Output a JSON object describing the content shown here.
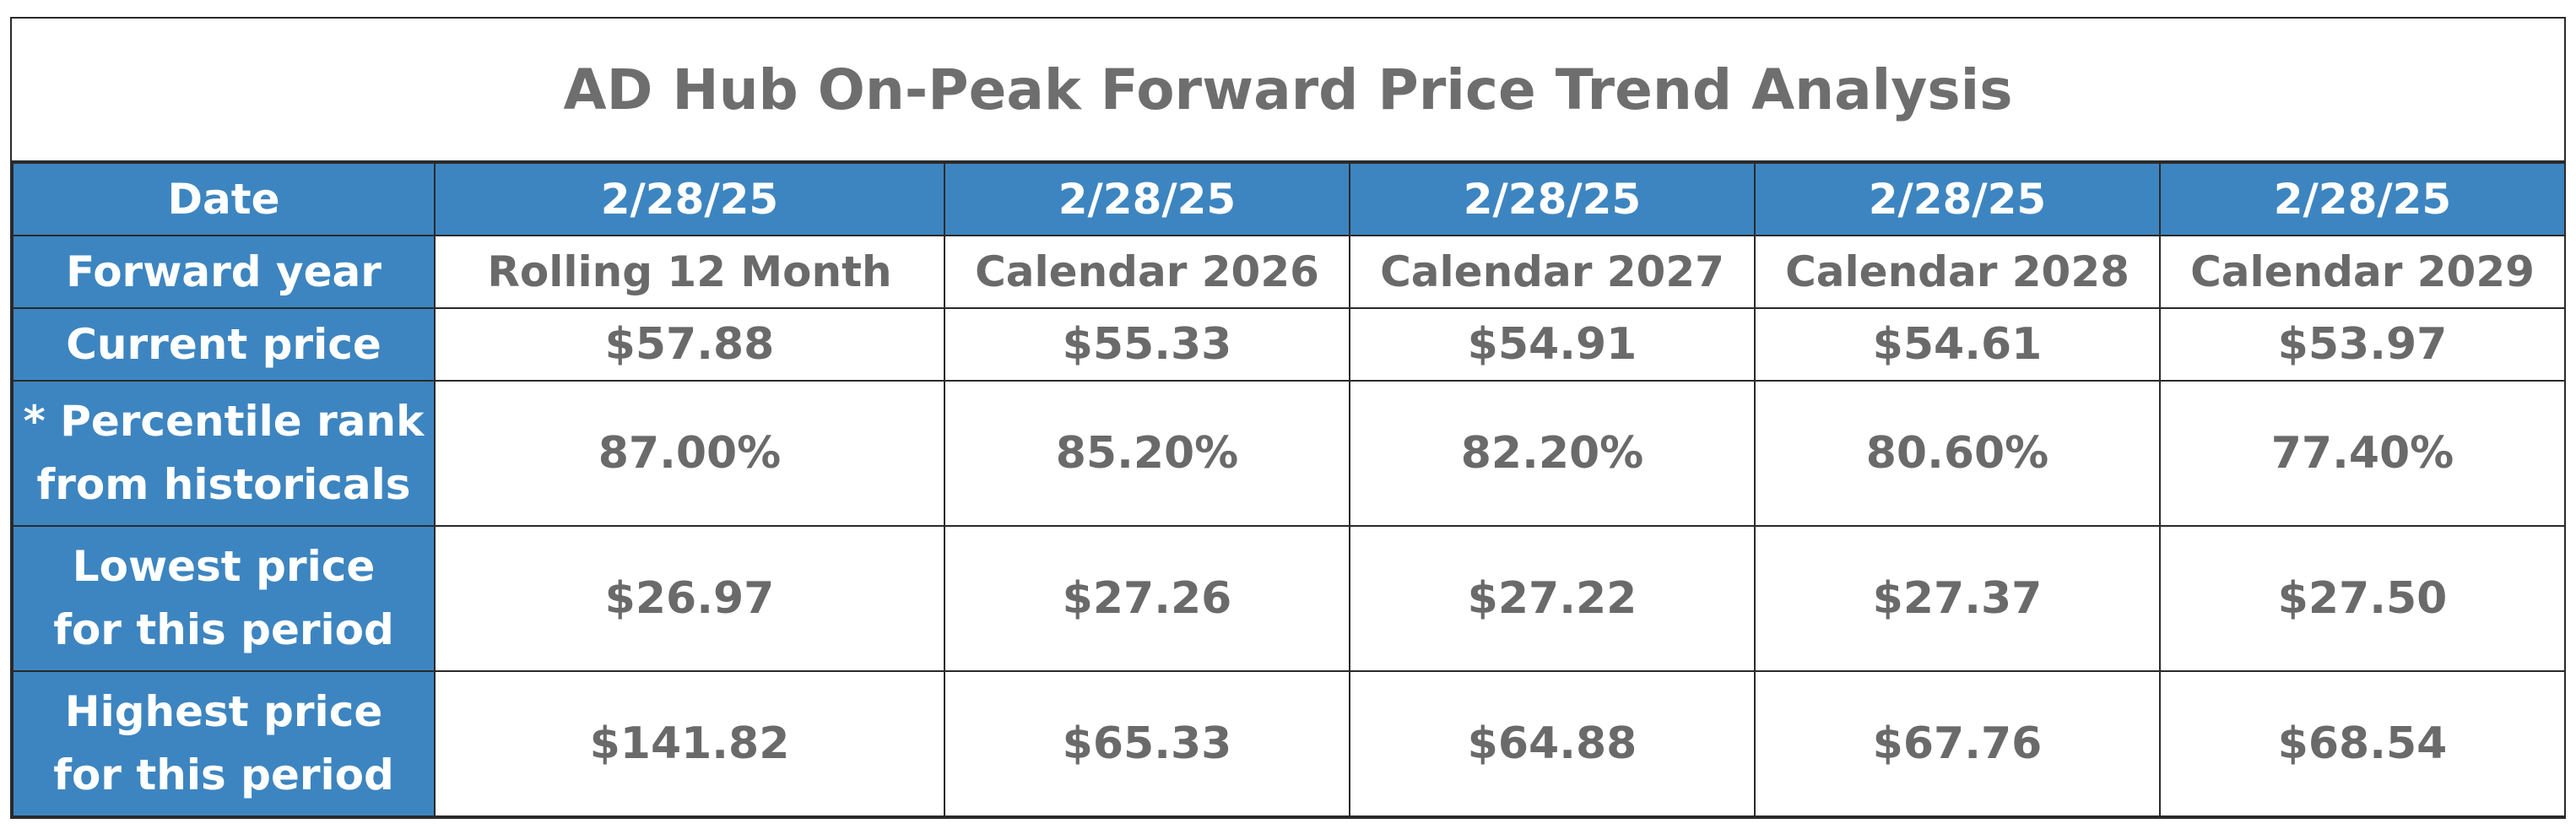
{
  "chart_data": {
    "type": "table",
    "title": "AD Hub On-Peak Forward Price Trend Analysis",
    "columns": [
      "Date",
      "2/28/25",
      "2/28/25",
      "2/28/25",
      "2/28/25",
      "2/28/25"
    ],
    "row_labels": [
      "Forward year",
      "Current price",
      [
        "* Percentile rank",
        "from historicals"
      ],
      [
        "Lowest price",
        "for this period"
      ],
      [
        "Highest price",
        "for this period"
      ]
    ],
    "rows": [
      [
        "Rolling 12 Month",
        "Calendar 2026",
        "Calendar 2027",
        "Calendar 2028",
        "Calendar 2029"
      ],
      [
        "$57.88",
        "$55.33",
        "$54.91",
        "$54.61",
        "$53.97"
      ],
      [
        "87.00%",
        "85.20%",
        "82.20%",
        "80.60%",
        "77.40%"
      ],
      [
        "$26.97",
        "$27.26",
        "$27.22",
        "$27.37",
        "$27.50"
      ],
      [
        "$141.82",
        "$65.33",
        "$64.88",
        "$67.76",
        "$68.54"
      ]
    ],
    "numeric": {
      "current_price": [
        57.88,
        55.33,
        54.91,
        54.61,
        53.97
      ],
      "percentile_rank": [
        87.0,
        85.2,
        82.2,
        80.6,
        77.4
      ],
      "lowest_price": [
        26.97,
        27.26,
        27.22,
        27.37,
        27.5
      ],
      "highest_price": [
        141.82,
        65.33,
        64.88,
        67.76,
        68.54
      ]
    }
  },
  "colors": {
    "header_blue": "#3d85c0",
    "text_gray": "#6e6e6e",
    "border": "#2a2a2a"
  }
}
